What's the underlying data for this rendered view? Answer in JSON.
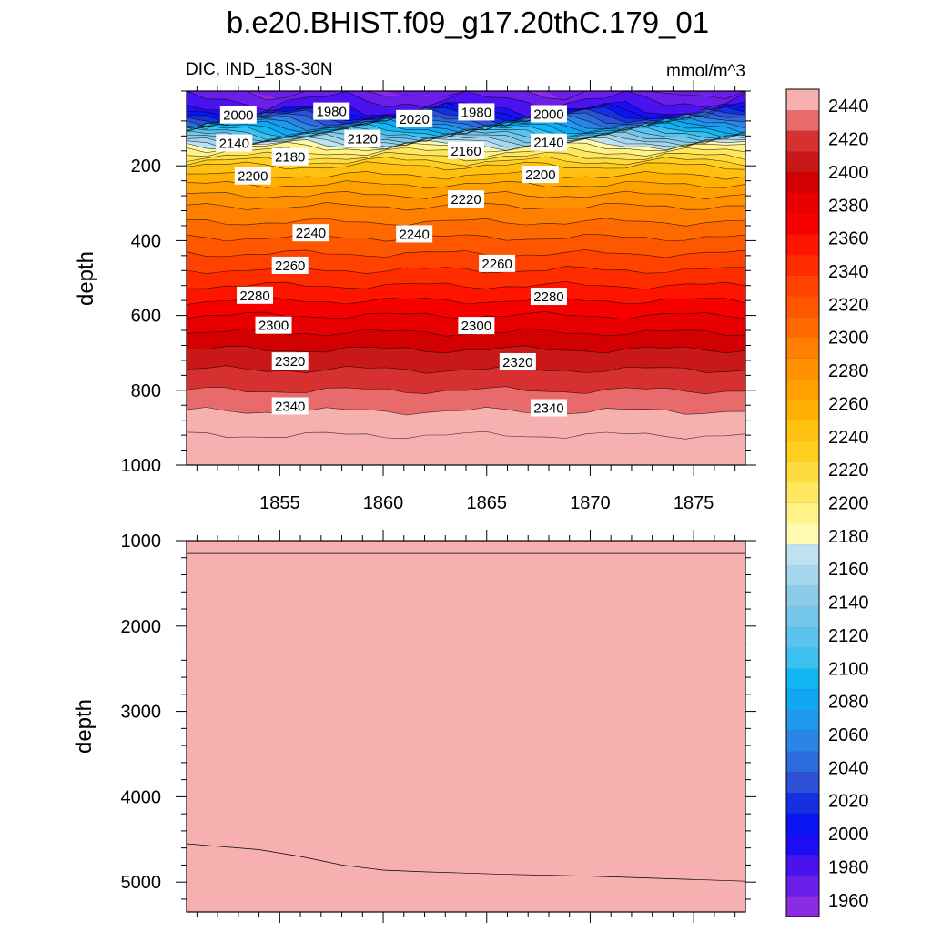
{
  "figure": {
    "title": "b.e20.BHIST.f09_g17.20thC.179_01",
    "left_label": "DIC, IND_18S-30N",
    "right_label": "mmol/m^3"
  },
  "colors": {
    "ramp": [
      "#8b2be2",
      "#6a1ee8",
      "#4a12ee",
      "#1e0cf5",
      "#0a14f0",
      "#1530e0",
      "#2e4fd8",
      "#2c6bdc",
      "#2a85e6",
      "#1f98ee",
      "#10a8f2",
      "#12b6f2",
      "#3cc0f0",
      "#5ac4ee",
      "#74c6ea",
      "#8ccbe8",
      "#a4d6ee",
      "#bde2f2",
      "#fffab0",
      "#fff388",
      "#ffe860",
      "#ffdc3e",
      "#ffcf20",
      "#ffc010",
      "#ffb000",
      "#ffa000",
      "#ff9000",
      "#ff7f00",
      "#ff6a00",
      "#ff5600",
      "#ff4200",
      "#ff2c00",
      "#ff1400",
      "#f70000",
      "#e80000",
      "#d20000",
      "#c81818",
      "#d63030",
      "#e86a6a",
      "#f7b0b0"
    ]
  },
  "chart_data": [
    {
      "type": "contour",
      "panel": "upper",
      "xlabel": "",
      "ylabel": "depth",
      "xlim": [
        1850.5,
        1877.5
      ],
      "ylim": [
        1000,
        0
      ],
      "x_ticks": [
        1855,
        1860,
        1865,
        1870,
        1875
      ],
      "y_ticks": [
        200,
        400,
        600,
        800,
        1000
      ],
      "contour_interval": 10,
      "depth_profile": {
        "depth": [
          0,
          50,
          100,
          150,
          200,
          250,
          300,
          400,
          500,
          600,
          700,
          800,
          900,
          1000
        ],
        "value": [
          1960,
          1980,
          2060,
          2140,
          2180,
          2200,
          2218,
          2242,
          2265,
          2290,
          2312,
          2330,
          2348,
          2358
        ]
      },
      "contour_labels": [
        {
          "text": "2000",
          "x": 1853.0,
          "y": 65
        },
        {
          "text": "1980",
          "x": 1857.5,
          "y": 55
        },
        {
          "text": "2020",
          "x": 1861.5,
          "y": 75
        },
        {
          "text": "1980",
          "x": 1864.5,
          "y": 57
        },
        {
          "text": "2000",
          "x": 1868.0,
          "y": 62
        },
        {
          "text": "2140",
          "x": 1852.8,
          "y": 140
        },
        {
          "text": "2120",
          "x": 1859.0,
          "y": 128
        },
        {
          "text": "2160",
          "x": 1864.0,
          "y": 160
        },
        {
          "text": "2140",
          "x": 1868.0,
          "y": 138
        },
        {
          "text": "2180",
          "x": 1855.5,
          "y": 177
        },
        {
          "text": "2200",
          "x": 1853.7,
          "y": 228
        },
        {
          "text": "2200",
          "x": 1867.6,
          "y": 224
        },
        {
          "text": "2220",
          "x": 1864.0,
          "y": 290
        },
        {
          "text": "2240",
          "x": 1856.5,
          "y": 380
        },
        {
          "text": "2240",
          "x": 1861.5,
          "y": 383
        },
        {
          "text": "2260",
          "x": 1855.5,
          "y": 467
        },
        {
          "text": "2260",
          "x": 1865.5,
          "y": 462
        },
        {
          "text": "2280",
          "x": 1853.8,
          "y": 547
        },
        {
          "text": "2280",
          "x": 1868.0,
          "y": 550
        },
        {
          "text": "2300",
          "x": 1854.7,
          "y": 627
        },
        {
          "text": "2300",
          "x": 1864.5,
          "y": 628
        },
        {
          "text": "2320",
          "x": 1855.5,
          "y": 723
        },
        {
          "text": "2320",
          "x": 1866.5,
          "y": 725
        },
        {
          "text": "2340",
          "x": 1855.5,
          "y": 843
        },
        {
          "text": "2340",
          "x": 1868.0,
          "y": 848
        }
      ]
    },
    {
      "type": "contour",
      "panel": "lower",
      "xlabel": "",
      "ylabel": "depth",
      "xlim": [
        1850.5,
        1877.5
      ],
      "ylim": [
        5350,
        1000
      ],
      "x_ticks": [
        1855,
        1860,
        1865,
        1870,
        1875
      ],
      "y_ticks": [
        1000,
        2000,
        3000,
        4000,
        5000
      ],
      "contour_lines": [
        {
          "level": 2370,
          "x": [
            1850.5,
            1877.5
          ],
          "depth": [
            1150,
            1150
          ]
        },
        {
          "level": 2380,
          "x": [
            1850.5,
            1852,
            1854,
            1856,
            1858,
            1860,
            1862,
            1866,
            1870,
            1877.5
          ],
          "depth": [
            4550,
            4580,
            4620,
            4700,
            4800,
            4860,
            4880,
            4910,
            4930,
            4990
          ]
        }
      ],
      "fill_levels": [
        2375,
        2385
      ]
    }
  ],
  "colorbar": {
    "levels": [
      1960,
      1980,
      2000,
      2020,
      2040,
      2060,
      2080,
      2100,
      2120,
      2140,
      2160,
      2180,
      2200,
      2220,
      2240,
      2260,
      2280,
      2300,
      2320,
      2340,
      2360,
      2380,
      2400,
      2420,
      2440
    ],
    "min": 1950,
    "max": 2450,
    "interval": 10
  }
}
